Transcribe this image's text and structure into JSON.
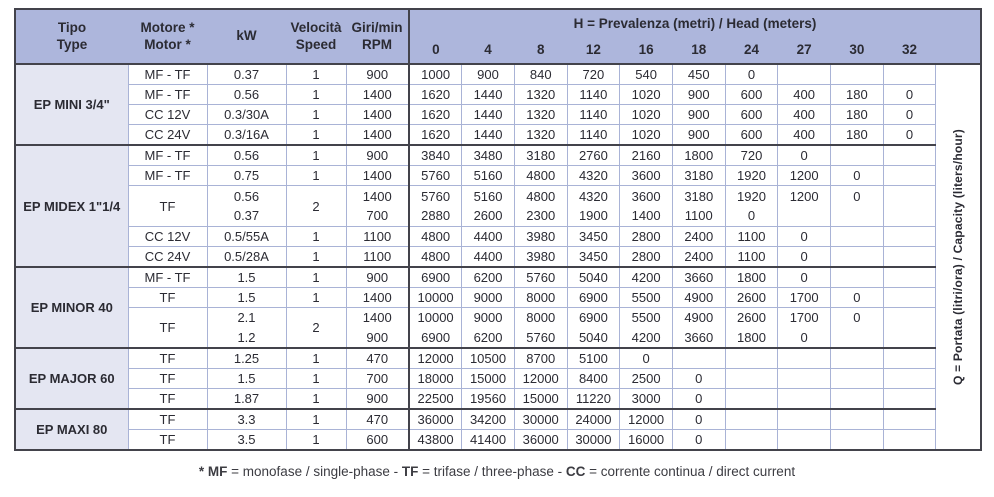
{
  "header": {
    "tipo": "Tipo\nType",
    "motore": "Motore *\nMotor *",
    "kw": "kW",
    "velocita": "Velocità\nSpeed",
    "giri": "Giri/min\nRPM",
    "h_title_prefix": "H",
    "h_title_rest": " = Prevalenza (metri) / Head (meters)",
    "h_values": [
      "0",
      "4",
      "8",
      "12",
      "16",
      "18",
      "24",
      "27",
      "30",
      "32"
    ]
  },
  "q_label": {
    "prefix": "Q",
    "rest": " = Portata (litri/ora) / Capacity (liters/hour)"
  },
  "footnote_segments": [
    {
      "text": "* MF",
      "bold": true
    },
    {
      "text": " = monofase / single-phase - ",
      "bold": false
    },
    {
      "text": "TF",
      "bold": true
    },
    {
      "text": " = trifase / three-phase - ",
      "bold": false
    },
    {
      "text": "CC",
      "bold": true
    },
    {
      "text": " = corrente continua / direct current",
      "bold": false
    }
  ],
  "colors": {
    "header_bg": "#adb6dc",
    "tipo_bg": "#e4e6f2",
    "light": "#a9b3d6",
    "dark": "#43434b",
    "text": "#2b2b33"
  },
  "groups": [
    {
      "name": "EP MINI 3/4\"",
      "rows": [
        {
          "motor": "MF - TF",
          "speed": "1",
          "lines": [
            {
              "kw": "0.37",
              "rpm": "900",
              "q": [
                "1000",
                "900",
                "840",
                "720",
                "540",
                "450",
                "0",
                "",
                "",
                ""
              ]
            }
          ]
        },
        {
          "motor": "MF - TF",
          "speed": "1",
          "lines": [
            {
              "kw": "0.56",
              "rpm": "1400",
              "q": [
                "1620",
                "1440",
                "1320",
                "1140",
                "1020",
                "900",
                "600",
                "400",
                "180",
                "0"
              ]
            }
          ]
        },
        {
          "motor": "CC 12V",
          "speed": "1",
          "lines": [
            {
              "kw": "0.3/30A",
              "rpm": "1400",
              "q": [
                "1620",
                "1440",
                "1320",
                "1140",
                "1020",
                "900",
                "600",
                "400",
                "180",
                "0"
              ]
            }
          ]
        },
        {
          "motor": "CC 24V",
          "speed": "1",
          "lines": [
            {
              "kw": "0.3/16A",
              "rpm": "1400",
              "q": [
                "1620",
                "1440",
                "1320",
                "1140",
                "1020",
                "900",
                "600",
                "400",
                "180",
                "0"
              ]
            }
          ]
        }
      ]
    },
    {
      "name": "EP MIDEX 1\"1/4",
      "rows": [
        {
          "motor": "MF - TF",
          "speed": "1",
          "lines": [
            {
              "kw": "0.56",
              "rpm": "900",
              "q": [
                "3840",
                "3480",
                "3180",
                "2760",
                "2160",
                "1800",
                "720",
                "0",
                "",
                ""
              ]
            }
          ]
        },
        {
          "motor": "MF - TF",
          "speed": "1",
          "lines": [
            {
              "kw": "0.75",
              "rpm": "1400",
              "q": [
                "5760",
                "5160",
                "4800",
                "4320",
                "3600",
                "3180",
                "1920",
                "1200",
                "0",
                ""
              ]
            }
          ]
        },
        {
          "motor": "TF",
          "speed": "2",
          "lines": [
            {
              "kw": "0.56",
              "rpm": "1400",
              "q": [
                "5760",
                "5160",
                "4800",
                "4320",
                "3600",
                "3180",
                "1920",
                "1200",
                "0",
                ""
              ]
            },
            {
              "kw": "0.37",
              "rpm": "700",
              "q": [
                "2880",
                "2600",
                "2300",
                "1900",
                "1400",
                "1100",
                "0",
                "",
                "",
                ""
              ]
            }
          ]
        },
        {
          "motor": "CC 12V",
          "speed": "1",
          "lines": [
            {
              "kw": "0.5/55A",
              "rpm": "1100",
              "q": [
                "4800",
                "4400",
                "3980",
                "3450",
                "2800",
                "2400",
                "1100",
                "0",
                "",
                ""
              ]
            }
          ]
        },
        {
          "motor": "CC 24V",
          "speed": "1",
          "lines": [
            {
              "kw": "0.5/28A",
              "rpm": "1100",
              "q": [
                "4800",
                "4400",
                "3980",
                "3450",
                "2800",
                "2400",
                "1100",
                "0",
                "",
                ""
              ]
            }
          ]
        }
      ]
    },
    {
      "name": "EP MINOR 40",
      "rows": [
        {
          "motor": "MF - TF",
          "speed": "1",
          "lines": [
            {
              "kw": "1.5",
              "rpm": "900",
              "q": [
                "6900",
                "6200",
                "5760",
                "5040",
                "4200",
                "3660",
                "1800",
                "0",
                "",
                ""
              ]
            }
          ]
        },
        {
          "motor": "TF",
          "speed": "1",
          "lines": [
            {
              "kw": "1.5",
              "rpm": "1400",
              "q": [
                "10000",
                "9000",
                "8000",
                "6900",
                "5500",
                "4900",
                "2600",
                "1700",
                "0",
                ""
              ]
            }
          ]
        },
        {
          "motor": "TF",
          "speed": "2",
          "lines": [
            {
              "kw": "2.1",
              "rpm": "1400",
              "q": [
                "10000",
                "9000",
                "8000",
                "6900",
                "5500",
                "4900",
                "2600",
                "1700",
                "0",
                ""
              ]
            },
            {
              "kw": "1.2",
              "rpm": "900",
              "q": [
                "6900",
                "6200",
                "5760",
                "5040",
                "4200",
                "3660",
                "1800",
                "0",
                "",
                ""
              ]
            }
          ]
        }
      ]
    },
    {
      "name": "EP MAJOR 60",
      "rows": [
        {
          "motor": "TF",
          "speed": "1",
          "lines": [
            {
              "kw": "1.25",
              "rpm": "470",
              "q": [
                "12000",
                "10500",
                "8700",
                "5100",
                "0",
                "",
                "",
                "",
                "",
                ""
              ]
            }
          ]
        },
        {
          "motor": "TF",
          "speed": "1",
          "lines": [
            {
              "kw": "1.5",
              "rpm": "700",
              "q": [
                "18000",
                "15000",
                "12000",
                "8400",
                "2500",
                "0",
                "",
                "",
                "",
                ""
              ]
            }
          ]
        },
        {
          "motor": "TF",
          "speed": "1",
          "lines": [
            {
              "kw": "1.87",
              "rpm": "900",
              "q": [
                "22500",
                "19560",
                "15000",
                "11220",
                "3000",
                "0",
                "",
                "",
                "",
                ""
              ]
            }
          ]
        }
      ]
    },
    {
      "name": "EP MAXI 80",
      "rows": [
        {
          "motor": "TF",
          "speed": "1",
          "lines": [
            {
              "kw": "3.3",
              "rpm": "470",
              "q": [
                "36000",
                "34200",
                "30000",
                "24000",
                "12000",
                "0",
                "",
                "",
                "",
                ""
              ]
            }
          ]
        },
        {
          "motor": "TF",
          "speed": "1",
          "lines": [
            {
              "kw": "3.5",
              "rpm": "600",
              "q": [
                "43800",
                "41400",
                "36000",
                "30000",
                "16000",
                "0",
                "",
                "",
                "",
                ""
              ]
            }
          ]
        }
      ]
    }
  ]
}
